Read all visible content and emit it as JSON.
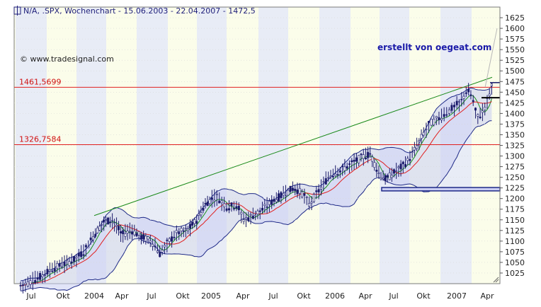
{
  "header": {
    "title": "N/A, .SPX, Wochenchart - 15.06.2003 - 22.04.2007 - 1472,5",
    "source_credit": "© www.tradesignal.com",
    "stamp": "erstellt von oegeat.com"
  },
  "chart_data": {
    "type": "candlestick",
    "title": "N/A, .SPX, Wochenchart - 15.06.2003 - 22.04.2007 - 1472,5",
    "ylim": [
      1000,
      1650
    ],
    "y_ticks": [
      "1025",
      "1050",
      "1075",
      "1100",
      "1125",
      "1150",
      "1175",
      "1200",
      "1225",
      "1250",
      "1275",
      "1300",
      "1325",
      "1350",
      "1375",
      "1400",
      "1425",
      "1450",
      "1475",
      "1500",
      "1525",
      "1550",
      "1575",
      "1600",
      "1625"
    ],
    "x_ticks": [
      "Jul",
      "Okt",
      "2004",
      "Apr",
      "Jul",
      "Okt",
      "2005",
      "Apr",
      "Jul",
      "Okt",
      "2006",
      "Apr",
      "Jul",
      "Okt",
      "2007",
      "Apr"
    ],
    "last_value": 1472.5,
    "horizontal_lines": [
      {
        "label": "1461,5699",
        "value": 1461.5699,
        "color": "#e02020"
      },
      {
        "label": "1326,7584",
        "value": 1326.7584,
        "color": "#e02020"
      }
    ],
    "trendline": {
      "from": [
        1.0,
        1160
      ],
      "to": [
        13.9,
        1485
      ],
      "color": "#1a8a1a"
    },
    "support_box": {
      "from_month": 11.0,
      "to_month": 13.97,
      "low": 1218,
      "high": 1226
    },
    "resistance_marker": {
      "value": 1437
    },
    "indicators": [
      "Bollinger Bands",
      "Moving Average (green)",
      "Moving Average (red)"
    ],
    "series_approx": {
      "x_month_index": [
        0,
        3,
        6,
        8,
        9,
        11,
        13,
        15,
        17,
        20,
        22,
        23,
        26,
        30,
        32,
        33,
        34,
        35,
        36,
        38,
        40,
        42,
        44,
        46,
        47,
        48
      ],
      "close": [
        1000,
        1050,
        1110,
        1150,
        1130,
        1120,
        1080,
        1110,
        1180,
        1190,
        1180,
        1160,
        1230,
        1250,
        1270,
        1310,
        1280,
        1240,
        1270,
        1340,
        1380,
        1420,
        1450,
        1400,
        1430,
        1472.5
      ]
    }
  }
}
